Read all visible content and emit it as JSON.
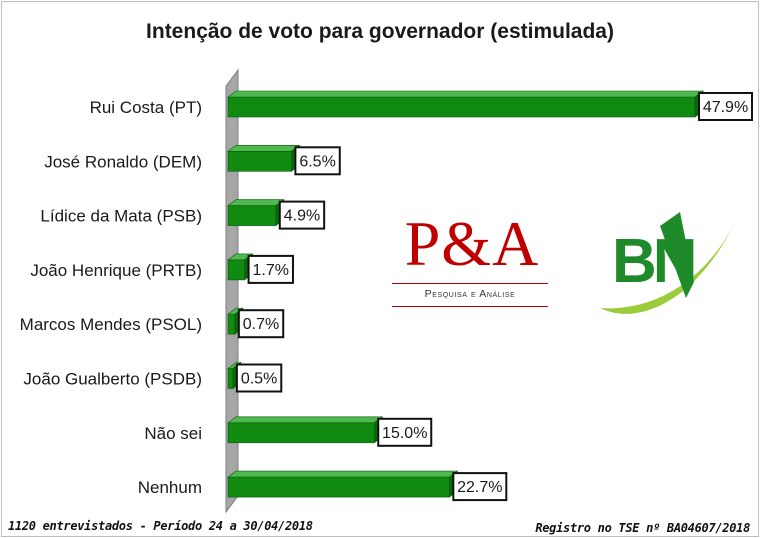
{
  "chart_data": {
    "type": "bar",
    "orientation": "horizontal",
    "title": "Intenção de voto para governador (estimulada)",
    "categories": [
      "Rui Costa (PT)",
      "José Ronaldo (DEM)",
      "Lídice da Mata (PSB)",
      "João Henrique (PRTB)",
      "Marcos Mendes (PSOL)",
      "João Gualberto (PSDB)",
      "Não sei",
      "Nenhum"
    ],
    "values": [
      47.9,
      6.5,
      4.9,
      1.7,
      0.7,
      0.5,
      15.0,
      22.7
    ],
    "data_labels": [
      "47.9%",
      "6.5%",
      "4.9%",
      "1.7%",
      "0.7%",
      "0.5%",
      "15.0%",
      "22.7%"
    ],
    "xlim": [
      0,
      50
    ],
    "bar_color": "#108a10",
    "grid": false,
    "legend": "none"
  },
  "logos": {
    "pa": {
      "main": "P&A",
      "sub": "Pesquisa e Análise",
      "color": "#c00000"
    },
    "bn": {
      "text": "BN",
      "color": "#1e8a2a",
      "accent": "#8dc63f"
    }
  },
  "footer": {
    "left": "1120 entrevistados - Período 24 a 30/04/2018",
    "right": "Registro no TSE nº BA04607/2018"
  }
}
